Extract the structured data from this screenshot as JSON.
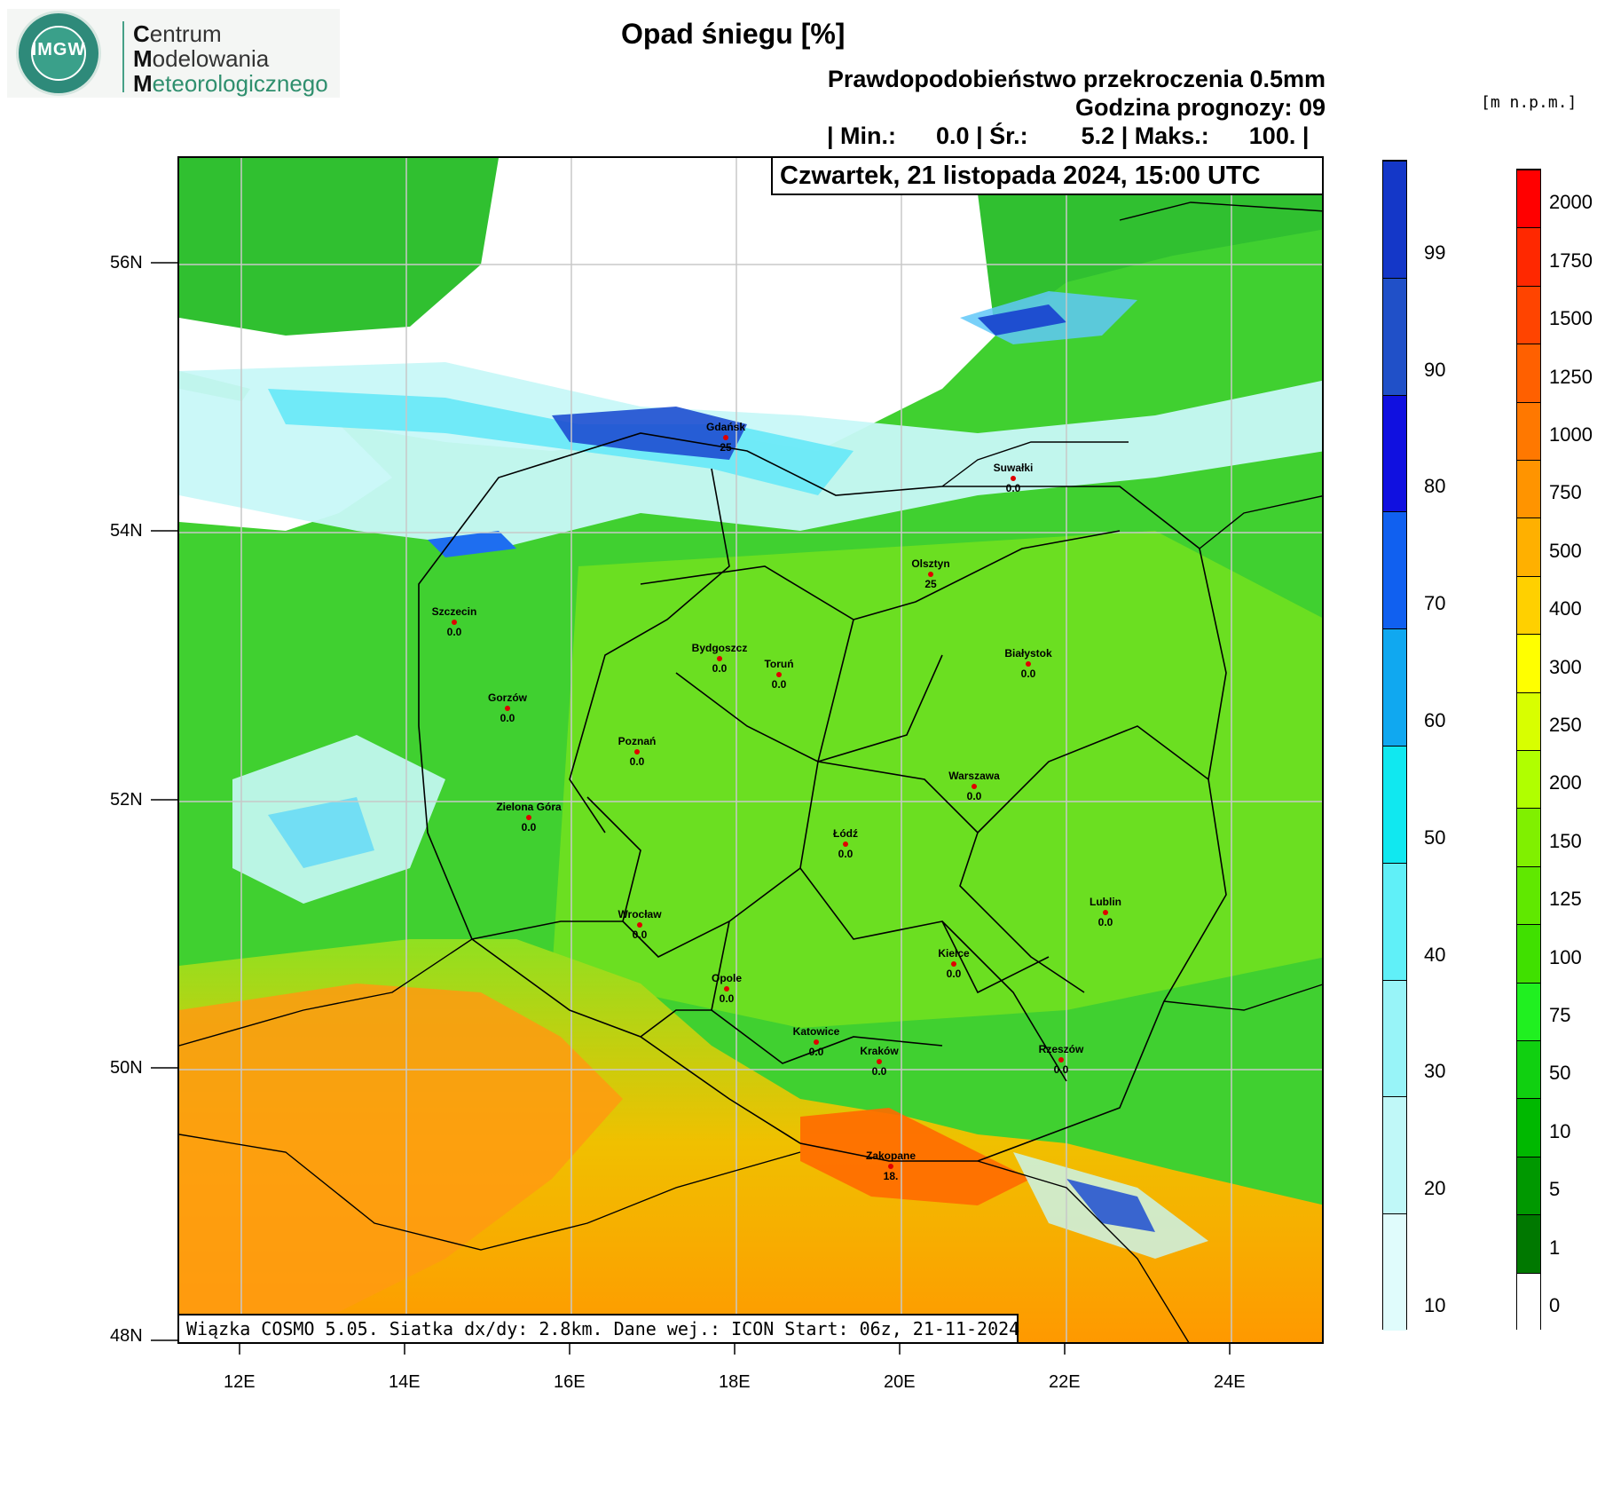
{
  "logo": {
    "seal_text": "IMGW",
    "line1_initial": "C",
    "line1_rest": "entrum",
    "line2_initial": "M",
    "line2_rest": "odelowania",
    "line3_initial": "M",
    "line3_rest": "eteorologicznego"
  },
  "header": {
    "title": "Opad śniegu [%]",
    "subtitle1": "Prawdopodobieństwo przekroczenia 0.5mm",
    "subtitle2": "Godzina prognozy: 09",
    "stats": "| Min.:      0.0 | Śr.:        5.2 | Maks.:      100. |",
    "date": "Czwartek, 21 listopada 2024, 15:00 UTC",
    "unit": "[m n.p.m.]"
  },
  "footer": "Wiązka COSMO 5.05. Siatka dx/dy: 2.8km. Dane wej.: ICON Start: 06z, 21-11-2024",
  "axes": {
    "lat_labels": [
      "56N",
      "54N",
      "52N",
      "50N",
      "48N"
    ],
    "lon_labels": [
      "12E",
      "14E",
      "16E",
      "18E",
      "20E",
      "22E",
      "24E"
    ]
  },
  "cities": [
    {
      "name": "Gdańsk",
      "value": "25"
    },
    {
      "name": "Suwałki",
      "value": "0.0"
    },
    {
      "name": "Olsztyn",
      "value": "25"
    },
    {
      "name": "Szczecin",
      "value": "0.0"
    },
    {
      "name": "Bydgoszcz",
      "value": "0.0"
    },
    {
      "name": "Toruń",
      "value": "0.0"
    },
    {
      "name": "Białystok",
      "value": "0.0"
    },
    {
      "name": "Gorzów",
      "value": "0.0"
    },
    {
      "name": "Poznań",
      "value": "0.0"
    },
    {
      "name": "Warszawa",
      "value": "0.0"
    },
    {
      "name": "Zielona Góra",
      "value": "0.0"
    },
    {
      "name": "Łódź",
      "value": "0.0"
    },
    {
      "name": "Lublin",
      "value": "0.0"
    },
    {
      "name": "Wrocław",
      "value": "0.0"
    },
    {
      "name": "Kielce",
      "value": "0.0"
    },
    {
      "name": "Opole",
      "value": "0.0"
    },
    {
      "name": "Katowice",
      "value": "0.0"
    },
    {
      "name": "Kraków",
      "value": "0.0"
    },
    {
      "name": "Rzeszów",
      "value": "0.0"
    },
    {
      "name": "Zakopane",
      "value": "18."
    }
  ],
  "snow_legend": {
    "labels": [
      "99",
      "90",
      "80",
      "70",
      "60",
      "50",
      "40",
      "30",
      "20",
      "10"
    ],
    "colors": [
      "#1437c8",
      "#2050c8",
      "#1010e0",
      "#1060f0",
      "#10a8f0",
      "#10e8f0",
      "#60f0f8",
      "#98f4f8",
      "#c0f8f8",
      "#e0fcfc"
    ]
  },
  "terrain_legend": {
    "labels": [
      "2000",
      "1750",
      "1500",
      "1250",
      "1000",
      "750",
      "500",
      "400",
      "300",
      "250",
      "200",
      "150",
      "125",
      "100",
      "75",
      "50",
      "10",
      "5",
      "1",
      "0"
    ],
    "colors": [
      "#ff0000",
      "#ff2800",
      "#ff4400",
      "#ff6000",
      "#ff7800",
      "#ff9400",
      "#ffb000",
      "#ffd000",
      "#ffff00",
      "#d8ff00",
      "#b0ff00",
      "#80f000",
      "#60e800",
      "#40e000",
      "#20f020",
      "#10d010",
      "#00b800",
      "#009800",
      "#007800",
      "#ffffff"
    ]
  }
}
